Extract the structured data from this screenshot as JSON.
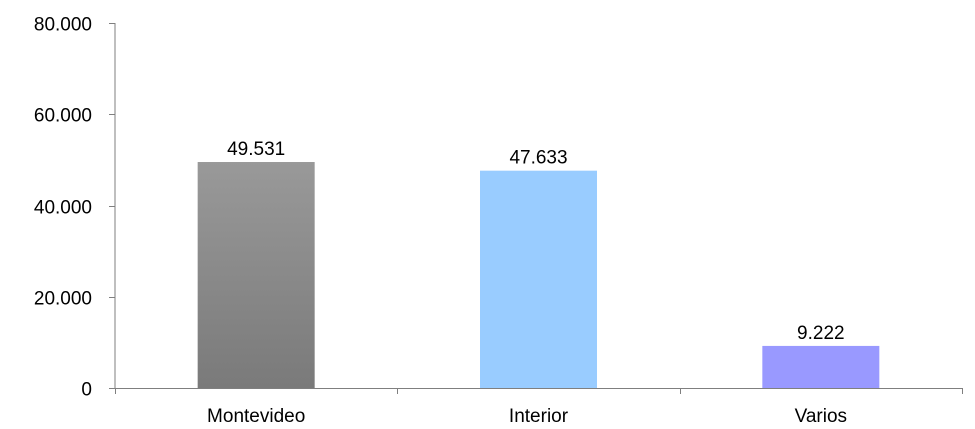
{
  "chart_data": {
    "type": "bar",
    "title": "",
    "xlabel": "",
    "ylabel": "",
    "categories": [
      "Montevideo",
      "Interior",
      "Varios"
    ],
    "values": [
      49531,
      47633,
      9222
    ],
    "value_labels": [
      "49.531",
      "47.633",
      "9.222"
    ],
    "ylim": [
      0,
      80000
    ],
    "yticks": [
      0,
      20000,
      40000,
      60000,
      80000
    ],
    "ytick_labels": [
      "0",
      "20.000",
      "40.000",
      "60.000",
      "80.000"
    ],
    "grid": false,
    "legend": "none",
    "bar_fills": [
      {
        "top": "#999999",
        "bottom": "#7a7a7a"
      },
      {
        "top": "#99ccff",
        "bottom": "#99ccff"
      },
      {
        "top": "#9999ff",
        "bottom": "#9999ff"
      }
    ]
  }
}
